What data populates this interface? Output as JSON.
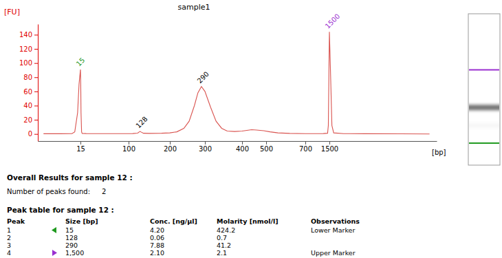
{
  "chart_data": {
    "type": "line",
    "title": "sample1",
    "y_label": "[FU]",
    "x_label": "[bp]",
    "color": "#d9534f",
    "grid": false,
    "xlim": [
      0,
      3000
    ],
    "xticks": [
      15,
      100,
      200,
      300,
      400,
      500,
      700,
      1500
    ],
    "ylim": [
      -10,
      155
    ],
    "yticks": [
      0,
      20,
      40,
      60,
      80,
      100,
      120,
      140
    ],
    "x": [
      2,
      8,
      12,
      13,
      14,
      14.5,
      15,
      15.5,
      16,
      17,
      18,
      25,
      50,
      80,
      110,
      122,
      126,
      128,
      131,
      136,
      150,
      180,
      200,
      220,
      240,
      255,
      270,
      280,
      290,
      300,
      315,
      330,
      345,
      360,
      380,
      400,
      420,
      440,
      460,
      490,
      520,
      560,
      620,
      700,
      900,
      1100,
      1300,
      1440,
      1465,
      1485,
      1500,
      1515,
      1535,
      1560,
      1700,
      2000,
      2500,
      2900
    ],
    "values": [
      0.3,
      0.3,
      0.5,
      3,
      30,
      70,
      91,
      70,
      30,
      3,
      0.8,
      0.6,
      0.5,
      0.5,
      0.6,
      1.2,
      3,
      3.5,
      2.5,
      1,
      0.8,
      1,
      1.5,
      3,
      8,
      18,
      40,
      58,
      67,
      60,
      38,
      18,
      8,
      4,
      3.5,
      4,
      5,
      6,
      5.5,
      4.5,
      3,
      1.5,
      0.8,
      0.5,
      0.5,
      0.5,
      0.6,
      1,
      12,
      90,
      144,
      90,
      12,
      1.5,
      0.5,
      0.3,
      0.2,
      0
    ],
    "peaks": [
      {
        "label": "15",
        "x": 15,
        "y": 91,
        "color": "#1f9a1f"
      },
      {
        "label": "128",
        "x": 128,
        "y": 3.5,
        "color": "#000000"
      },
      {
        "label": "290",
        "x": 290,
        "y": 67,
        "color": "#000000"
      },
      {
        "label": "1500",
        "x": 1500,
        "y": 144,
        "color": "#9a2fd0"
      }
    ]
  },
  "results": {
    "title": "Overall Results for sample 12 :",
    "label": "Number of peaks found:",
    "value": 2
  },
  "peak_table": {
    "title": "Peak table for sample 12 :",
    "columns": [
      "Peak",
      "Size [bp]",
      "Conc. [ng/µl]",
      "Molarity [nmol/l]",
      "Observations"
    ],
    "rows": [
      [
        "1",
        "15",
        "4.20",
        "424.2",
        "Lower Marker"
      ],
      [
        "2",
        "128",
        "0.06",
        "0.7",
        null
      ],
      [
        "3",
        "290",
        "7.88",
        "41.2",
        null
      ],
      [
        "4",
        "1,500",
        "2.10",
        "2.1",
        "Upper Marker"
      ]
    ]
  }
}
